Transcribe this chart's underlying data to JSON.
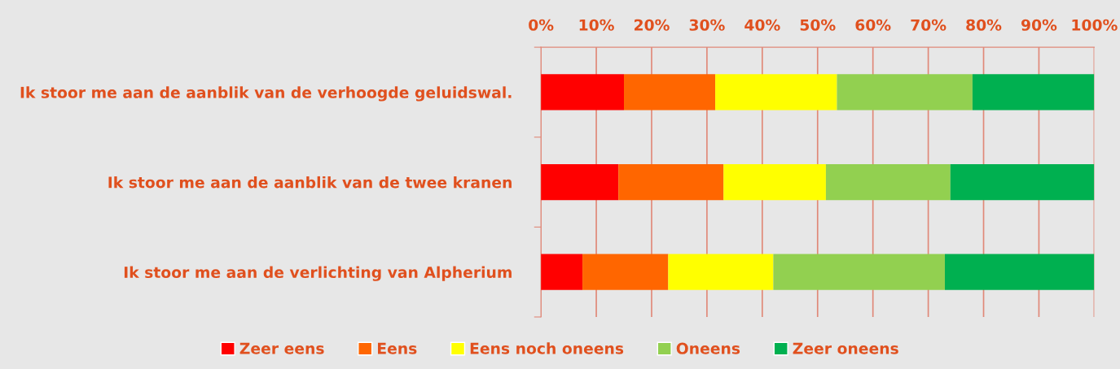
{
  "chart_data": {
    "type": "bar",
    "orientation": "horizontal",
    "stacked": true,
    "categories": [
      "Ik stoor me aan de aanblik van de verhoogde geluidswal.",
      "Ik stoor me aan de aanblik van de twee kranen",
      "Ik stoor me aan de verlichting van Alpherium"
    ],
    "series": [
      {
        "name": "Zeer eens",
        "color": "#ff0000",
        "values": [
          15,
          14,
          7.5
        ]
      },
      {
        "name": "Eens",
        "color": "#ff6600",
        "values": [
          16.5,
          19,
          15.5
        ]
      },
      {
        "name": "Eens noch oneens",
        "color": "#ffff00",
        "values": [
          22,
          18.5,
          19
        ]
      },
      {
        "name": "Oneens",
        "color": "#92d050",
        "values": [
          24.5,
          22.5,
          31
        ]
      },
      {
        "name": "Zeer oneens",
        "color": "#00b050",
        "values": [
          22,
          26,
          27
        ]
      }
    ],
    "xlim": [
      0,
      100
    ],
    "xticks": [
      {
        "value": 0,
        "label": "0%"
      },
      {
        "value": 10,
        "label": "10%"
      },
      {
        "value": 20,
        "label": "20%"
      },
      {
        "value": 30,
        "label": "30%"
      },
      {
        "value": 40,
        "label": "40%"
      },
      {
        "value": 50,
        "label": "50%"
      },
      {
        "value": 60,
        "label": "60%"
      },
      {
        "value": 70,
        "label": "70%"
      },
      {
        "value": 80,
        "label": "80%"
      },
      {
        "value": 90,
        "label": "90%"
      },
      {
        "value": 100,
        "label": "100%"
      }
    ],
    "grid": "x",
    "legend": "bottom"
  }
}
